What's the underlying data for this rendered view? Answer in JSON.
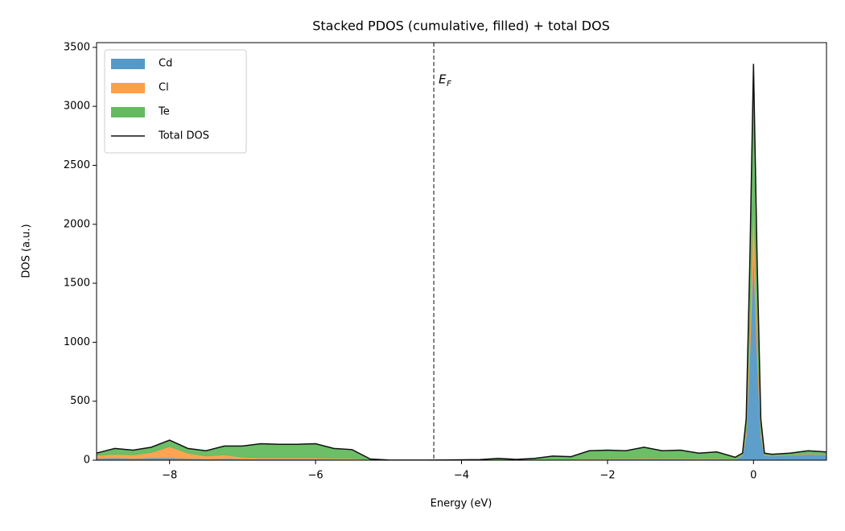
{
  "chart_data": {
    "type": "stacked_area",
    "title": "Stacked PDOS (cumulative, filled) + total DOS",
    "xlabel": "Energy (eV)",
    "ylabel": "DOS (a.u.)",
    "x": [
      -9,
      -8.75,
      -8.5,
      -8.25,
      -8,
      -7.75,
      -7.5,
      -7.25,
      -7,
      -6.75,
      -6.5,
      -6.25,
      -6,
      -5.75,
      -5.5,
      -5.25,
      -5,
      -4.75,
      -4.5,
      -4.25,
      -4,
      -3.75,
      -3.5,
      -3.25,
      -3,
      -2.75,
      -2.5,
      -2.25,
      -2,
      -1.75,
      -1.5,
      -1.25,
      -1,
      -0.75,
      -0.5,
      -0.25,
      -0.15,
      -0.1,
      -0.05,
      0,
      0.05,
      0.1,
      0.15,
      0.25,
      0.5,
      0.75,
      1
    ],
    "series": [
      {
        "name": "Cd",
        "color": "#5599c8",
        "values": [
          15,
          20,
          15,
          20,
          20,
          15,
          10,
          15,
          10,
          10,
          10,
          10,
          10,
          8,
          8,
          2,
          0,
          0,
          0,
          0,
          0,
          1,
          2,
          1,
          2,
          4,
          4,
          8,
          8,
          10,
          12,
          10,
          10,
          8,
          10,
          5,
          40,
          200,
          900,
          1780,
          900,
          200,
          40,
          35,
          40,
          50,
          45
        ]
      },
      {
        "name": "Cl",
        "color": "#ff9f4a",
        "values": [
          25,
          30,
          30,
          45,
          95,
          45,
          25,
          30,
          15,
          10,
          10,
          10,
          10,
          7,
          7,
          1,
          0,
          0,
          0,
          0,
          0,
          0,
          1,
          0,
          1,
          2,
          2,
          4,
          4,
          5,
          6,
          5,
          5,
          4,
          5,
          2,
          5,
          40,
          210,
          420,
          210,
          40,
          5,
          3,
          3,
          5,
          4
        ]
      },
      {
        "name": "Te",
        "color": "#64bb5f",
        "values": [
          20,
          50,
          40,
          45,
          55,
          40,
          45,
          75,
          95,
          120,
          115,
          115,
          120,
          85,
          75,
          7,
          2,
          1,
          1,
          2,
          3,
          4,
          12,
          6,
          12,
          29,
          24,
          68,
          73,
          65,
          92,
          65,
          70,
          48,
          55,
          18,
          15,
          110,
          580,
          1160,
          580,
          110,
          15,
          12,
          17,
          25,
          21
        ]
      },
      {
        "name": "Total DOS",
        "color": "#111111",
        "kind": "line",
        "values": [
          60,
          100,
          85,
          110,
          170,
          100,
          80,
          120,
          120,
          140,
          135,
          135,
          140,
          100,
          90,
          10,
          2,
          1,
          1,
          2,
          3,
          5,
          15,
          7,
          15,
          35,
          30,
          80,
          85,
          80,
          110,
          80,
          85,
          60,
          70,
          25,
          60,
          350,
          1690,
          3360,
          1690,
          350,
          60,
          50,
          60,
          80,
          70
        ]
      }
    ],
    "xlim": [
      -9,
      1
    ],
    "ylim": [
      0,
      3540
    ],
    "xticks": [
      {
        "value": -8,
        "label": "−8"
      },
      {
        "value": -6,
        "label": "−6"
      },
      {
        "value": -4,
        "label": "−4"
      },
      {
        "value": -2,
        "label": "−2"
      },
      0
    ],
    "yticks": [
      0,
      500,
      1000,
      1500,
      2000,
      2500,
      3000,
      3500
    ],
    "vline": {
      "x": -4.38,
      "color": "#333333"
    },
    "annotation": {
      "text": "E",
      "subscript": "F"
    },
    "legend": "upper left"
  }
}
